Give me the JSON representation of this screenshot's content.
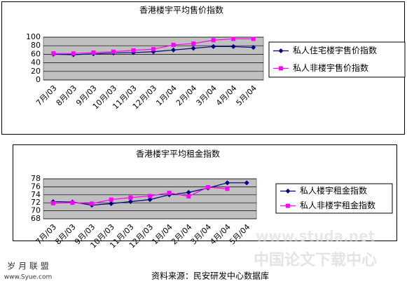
{
  "chart_data": [
    {
      "type": "line",
      "title": "香港楼宇平均售价指数",
      "categories": [
        "7月/03",
        "8月/03",
        "9月/03",
        "10月/03",
        "11月/03",
        "12月/03",
        "1月/04",
        "2月/04",
        "3月/04",
        "4月/04",
        "5月/04"
      ],
      "series": [
        {
          "name": "私人住宅楼宇售价指数",
          "color": "#000080",
          "marker": "diamond",
          "values": [
            60,
            59,
            61,
            63,
            64,
            66,
            70,
            74,
            78,
            78,
            76
          ]
        },
        {
          "name": "私人非楼宇售价指数",
          "color": "#ff00ff",
          "marker": "square",
          "values": [
            62,
            62,
            64,
            66,
            69,
            72,
            82,
            85,
            93,
            96,
            96
          ]
        }
      ],
      "ylim": [
        0,
        100
      ],
      "yticks": [
        0,
        20,
        40,
        60,
        80,
        100
      ],
      "grid": true,
      "legend": "right"
    },
    {
      "type": "line",
      "title": "香港楼宇平均租金指数",
      "categories": [
        "7月/03",
        "8月/03",
        "9月/03",
        "10月/03",
        "11月/03",
        "12月/03",
        "1月/04",
        "2月/04",
        "3月/04",
        "4月/04",
        "5月/04"
      ],
      "series": [
        {
          "name": "私人楼宇租金指数",
          "color": "#000080",
          "marker": "diamond",
          "values": [
            72.3,
            72.2,
            71.4,
            71.8,
            72.3,
            72.8,
            74.0,
            74.6,
            75.7,
            77.0,
            77.0
          ]
        },
        {
          "name": "私人非楼宇租金指数",
          "color": "#ff00ff",
          "marker": "square",
          "values": [
            71.9,
            72.0,
            71.8,
            72.8,
            73.3,
            73.7,
            74.5,
            73.6,
            75.9,
            75.5,
            null
          ]
        }
      ],
      "ylim": [
        68,
        78
      ],
      "yticks": [
        68,
        70,
        72,
        74,
        76,
        78
      ],
      "grid": true,
      "legend": "right"
    }
  ],
  "source": "资料来源：民安研发中心数据库",
  "watermarks": [
    "www.studa.net",
    "中国论文下载中心",
    "岁 月 联 盟",
    "www.Syue.com"
  ]
}
